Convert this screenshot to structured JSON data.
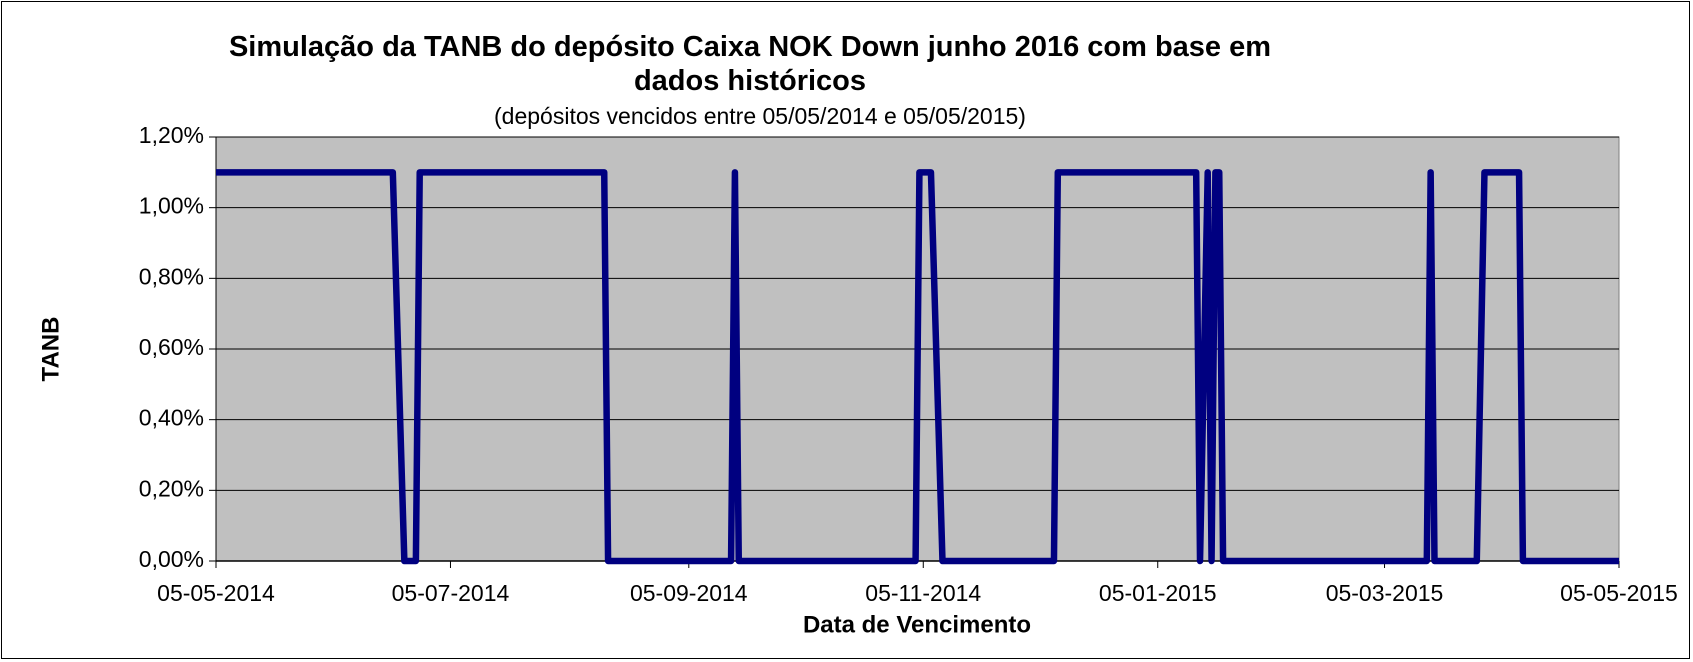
{
  "chart_data": {
    "type": "line",
    "title": "Simulação da TANB do depósito Caixa NOK Down junho 2016 com base em dados históricos",
    "subtitle": "(depósitos vencidos entre 05/05/2014 e 05/05/2015)",
    "x_label": "Data de Vencimento",
    "y_label": "TANB",
    "x": [
      "05-05-2014",
      "20-06-2014",
      "23-06-2014",
      "26-06-2014",
      "27-06-2014",
      "14-08-2014",
      "15-08-2014",
      "16-09-2014",
      "17-09-2014",
      "18-09-2014",
      "03-11-2014",
      "04-11-2014",
      "07-11-2014",
      "10-11-2014",
      "09-12-2014",
      "10-12-2014",
      "15-01-2015",
      "16-01-2015",
      "18-01-2015",
      "19-01-2015",
      "20-01-2015",
      "21-01-2015",
      "22-01-2015",
      "16-03-2015",
      "17-03-2015",
      "18-03-2015",
      "29-03-2015",
      "31-03-2015",
      "09-04-2015",
      "10-04-2015",
      "05-05-2015"
    ],
    "series": [
      {
        "name": "TANB",
        "color": "#000080",
        "values": [
          1.1,
          1.1,
          0,
          0,
          1.1,
          1.1,
          0,
          0,
          1.1,
          0,
          0,
          1.1,
          1.1,
          0,
          0,
          1.1,
          1.1,
          0,
          1.1,
          0,
          1.1,
          1.1,
          0,
          0,
          1.1,
          0,
          0,
          1.1,
          1.1,
          0,
          0
        ]
      }
    ],
    "xlim": [
      "05-05-2014",
      "05-05-2015"
    ],
    "xticks": [
      "05-05-2014",
      "05-07-2014",
      "05-09-2014",
      "05-11-2014",
      "05-01-2015",
      "05-03-2015",
      "05-05-2015"
    ],
    "ylim": [
      0,
      1.2
    ],
    "yticks": [
      {
        "value": 0,
        "label": "0,00%"
      },
      {
        "value": 0.2,
        "label": "0,20%"
      },
      {
        "value": 0.4,
        "label": "0,40%"
      },
      {
        "value": 0.6,
        "label": "0,60%"
      },
      {
        "value": 0.8,
        "label": "0,80%"
      },
      {
        "value": 1.0,
        "label": "1,00%"
      },
      {
        "value": 1.2,
        "label": "1,20%"
      }
    ],
    "grid": true,
    "plot_background": "#c0c0c0"
  }
}
